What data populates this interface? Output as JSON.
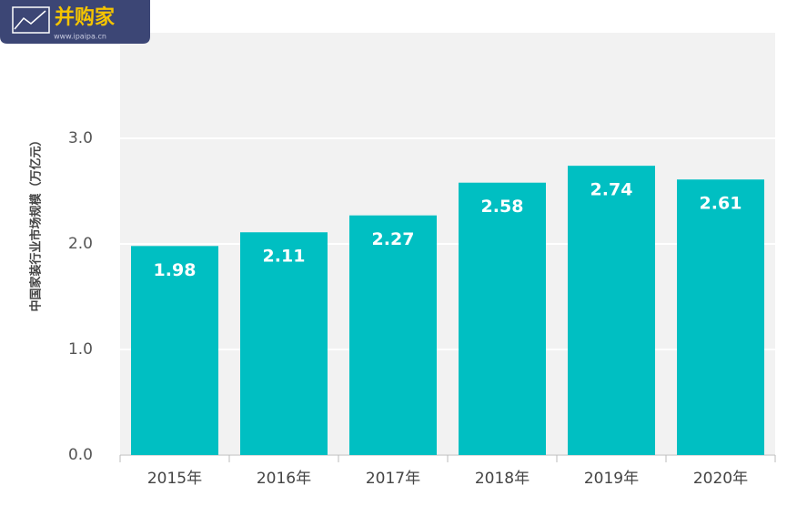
{
  "logo": {
    "title": "并购家",
    "url": "www.ipaipa.cn"
  },
  "chart_data": {
    "type": "bar",
    "y_label": "中国家装行业市场规模（万亿元）",
    "categories": [
      "2015年",
      "2016年",
      "2017年",
      "2018年",
      "2019年",
      "2020年"
    ],
    "values": [
      1.98,
      2.11,
      2.27,
      2.58,
      2.74,
      2.61
    ],
    "color": "#00bfc2",
    "ylim": [
      0,
      4
    ],
    "yticks": [
      {
        "value": 0,
        "label": "0.0"
      },
      {
        "value": 1,
        "label": "1.0"
      },
      {
        "value": 2,
        "label": "2.0"
      },
      {
        "value": 3,
        "label": "3.0"
      }
    ],
    "grid": true
  }
}
